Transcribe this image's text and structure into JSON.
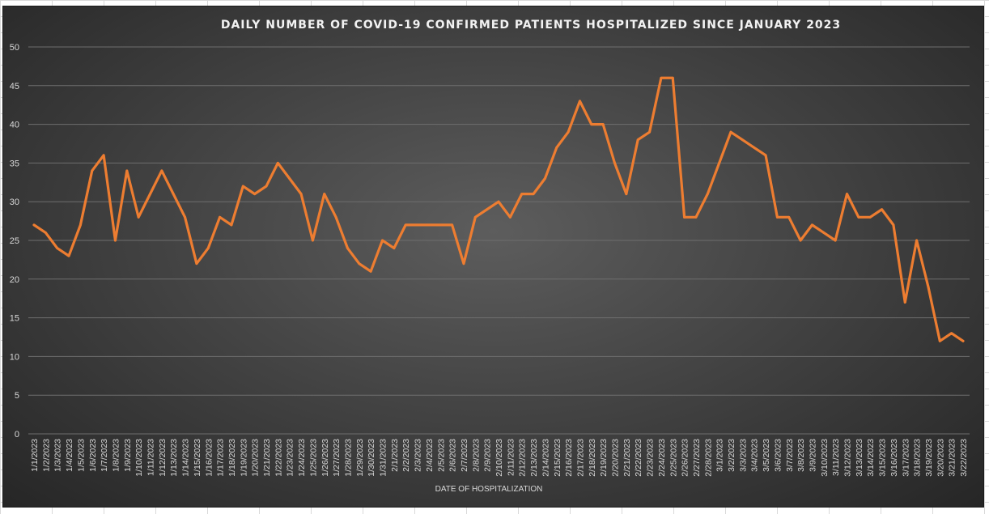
{
  "colors": {
    "series": "#ED7D31",
    "background": "#404040"
  },
  "chart_data": {
    "type": "line",
    "title": "DAILY NUMBER OF COVID-19 CONFIRMED PATIENTS HOSPITALIZED SINCE JANUARY 2023",
    "xlabel": "DATE OF HOSPITALIZATION",
    "ylabel": "",
    "ylim": [
      0,
      50
    ],
    "yticks": [
      0,
      5,
      10,
      15,
      20,
      25,
      30,
      35,
      40,
      45,
      50
    ],
    "grid": true,
    "legend": "none",
    "categories": [
      "1/1/2023",
      "1/2/2023",
      "1/3/2023",
      "1/4/2023",
      "1/5/2023",
      "1/6/2023",
      "1/7/2023",
      "1/8/2023",
      "1/9/2023",
      "1/10/2023",
      "1/11/2023",
      "1/12/2023",
      "1/13/2023",
      "1/14/2023",
      "1/15/2023",
      "1/16/2023",
      "1/17/2023",
      "1/18/2023",
      "1/19/2023",
      "1/20/2023",
      "1/21/2023",
      "1/22/2023",
      "1/23/2023",
      "1/24/2023",
      "1/25/2023",
      "1/26/2023",
      "1/27/2023",
      "1/28/2023",
      "1/29/2023",
      "1/30/2023",
      "1/31/2023",
      "2/1/2023",
      "2/2/2023",
      "2/3/2023",
      "2/4/2023",
      "2/5/2023",
      "2/6/2023",
      "2/7/2023",
      "2/8/2023",
      "2/9/2023",
      "2/10/2023",
      "2/11/2023",
      "2/12/2023",
      "2/13/2023",
      "2/14/2023",
      "2/15/2023",
      "2/16/2023",
      "2/17/2023",
      "2/18/2023",
      "2/19/2023",
      "2/20/2023",
      "2/21/2023",
      "2/22/2023",
      "2/23/2023",
      "2/24/2023",
      "2/25/2023",
      "2/26/2023",
      "2/27/2023",
      "2/28/2023",
      "3/1/2023",
      "3/2/2023",
      "3/3/2023",
      "3/4/2023",
      "3/5/2023",
      "3/6/2023",
      "3/7/2023",
      "3/8/2023",
      "3/9/2023",
      "3/10/2023",
      "3/11/2023",
      "3/12/2023",
      "3/13/2023",
      "3/14/2023",
      "3/15/2023",
      "3/16/2023",
      "3/17/2023",
      "3/18/2023",
      "3/19/2023",
      "3/20/2023",
      "3/21/2023",
      "3/22/2023"
    ],
    "values": [
      27,
      26,
      24,
      23,
      27,
      34,
      36,
      25,
      34,
      28,
      31,
      34,
      31,
      28,
      22,
      24,
      28,
      27,
      32,
      31,
      32,
      35,
      33,
      31,
      25,
      31,
      28,
      24,
      22,
      21,
      25,
      24,
      27,
      27,
      27,
      27,
      27,
      22,
      28,
      29,
      30,
      28,
      31,
      31,
      33,
      37,
      39,
      43,
      40,
      40,
      35,
      31,
      38,
      39,
      46,
      46,
      28,
      28,
      31,
      35,
      39,
      38,
      37,
      36,
      28,
      28,
      25,
      27,
      26,
      25,
      31,
      28,
      28,
      29,
      27,
      17,
      25,
      19,
      12,
      13,
      12
    ]
  }
}
